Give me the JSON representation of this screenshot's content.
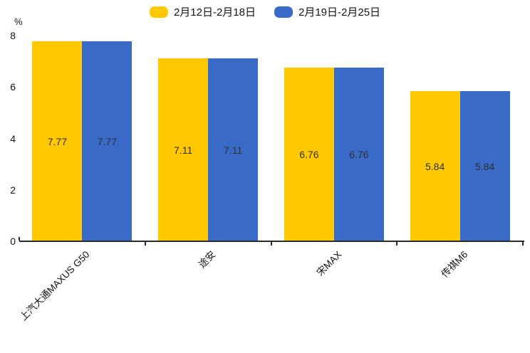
{
  "legend": {
    "items": [
      {
        "label": "2月12日-2月18日",
        "color": "#FFC800"
      },
      {
        "label": "2月19日-2月25日",
        "color": "#3A6AC8"
      }
    ]
  },
  "chart_data": {
    "type": "bar",
    "title": "",
    "categories": [
      "上汽大通MAXUS G50",
      "途安",
      "宋MAX",
      "传祺M6"
    ],
    "series": [
      {
        "name": "2月12日-2月18日",
        "color": "#FFC800",
        "values": [
          7.77,
          7.11,
          6.76,
          5.84
        ]
      },
      {
        "name": "2月19日-2月25日",
        "color": "#3A6AC8",
        "values": [
          7.77,
          7.11,
          6.76,
          5.84
        ]
      }
    ],
    "xlabel": "",
    "ylabel": "%",
    "ylim": [
      0,
      8
    ],
    "yticks": [
      0,
      2,
      4,
      6,
      8
    ],
    "grid": false,
    "legend_position": "top",
    "value_labels": true,
    "value_label_format": "0.00"
  }
}
